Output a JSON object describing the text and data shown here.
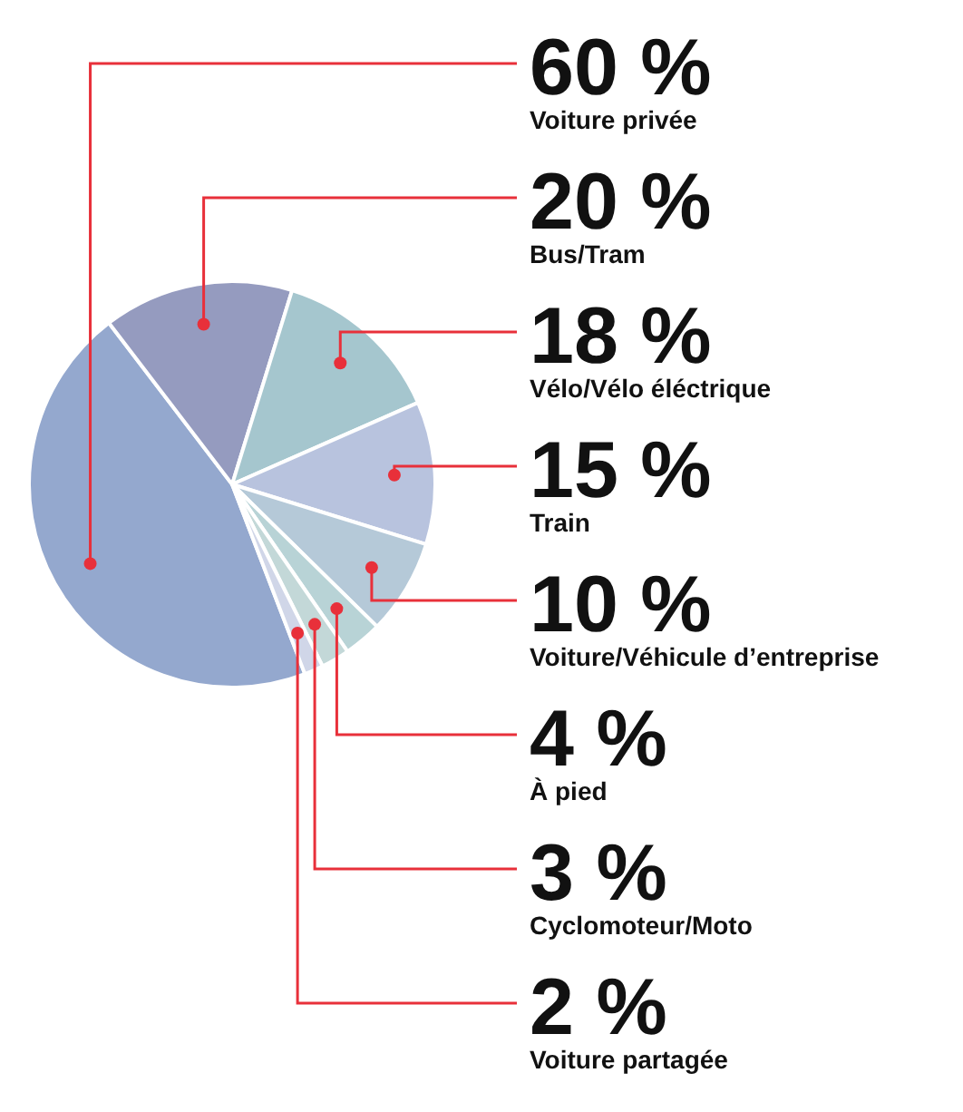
{
  "chart_data": {
    "type": "pie",
    "categories": [
      "Voiture privée",
      "Bus/Tram",
      "Vélo/Vélo éléctrique",
      "Train",
      "Voiture/Véhicule d’entreprise",
      "À pied",
      "Cyclomoteur/Moto",
      "Voiture partagée"
    ],
    "values": [
      60,
      20,
      18,
      15,
      10,
      4,
      3,
      2
    ],
    "value_labels": [
      "60 %",
      "20 %",
      "18 %",
      "15 %",
      "10 %",
      "4 %",
      "3 %",
      "2 %"
    ],
    "colors": [
      "#94a8ce",
      "#959bbf",
      "#a5c6ce",
      "#b8c3de",
      "#b5c9d8",
      "#b8d3d6",
      "#c3d8d8",
      "#d0d6e8"
    ],
    "legend": false
  }
}
